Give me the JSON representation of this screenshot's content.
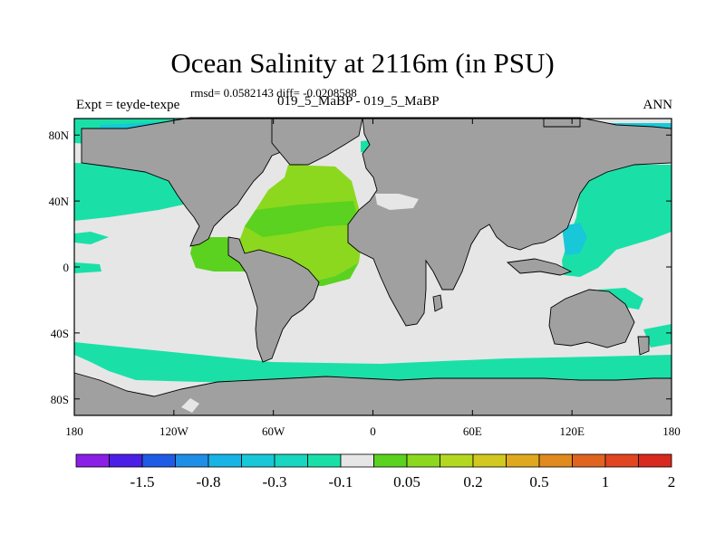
{
  "title": "Ocean Salinity at 2116m (in PSU)",
  "stats_line": "rmsd= 0.0582143 diff= -0.0208588",
  "expt_label": "Expt = teyde-texpe",
  "period_label": "019_5_MaBP - 019_5_MaBP",
  "season_label": "ANN",
  "map": {
    "lat_ticks": [
      "80N",
      "40N",
      "0",
      "40S",
      "80S"
    ],
    "lon_ticks": [
      "180",
      "120W",
      "60W",
      "0",
      "60E",
      "120E",
      "180"
    ],
    "land_color": "#a0a0a0",
    "neutral_color": "#e6e6e6",
    "projection": "cylindrical equidistant",
    "lon_range": [
      -180,
      180
    ],
    "lat_range": [
      -90,
      90
    ]
  },
  "colorbar": {
    "colors": [
      "#8a1fe6",
      "#4c1fe6",
      "#1f5ce6",
      "#1f8ee6",
      "#18b4e6",
      "#18c8d8",
      "#18d6c0",
      "#1ae0a8",
      "#e6e6e6",
      "#5ad21f",
      "#8cd81f",
      "#b4d81f",
      "#d2c81f",
      "#e0a81f",
      "#e08a1f",
      "#e0641f",
      "#e0461f",
      "#d82a1f"
    ],
    "labels": [
      "-1.5",
      "-0.8",
      "-0.3",
      "-0.1",
      "0.05",
      "0.2",
      "0.5",
      "1",
      "2"
    ],
    "label_boundaries": [
      2,
      4,
      6,
      8,
      10,
      12,
      14,
      16,
      18
    ]
  }
}
